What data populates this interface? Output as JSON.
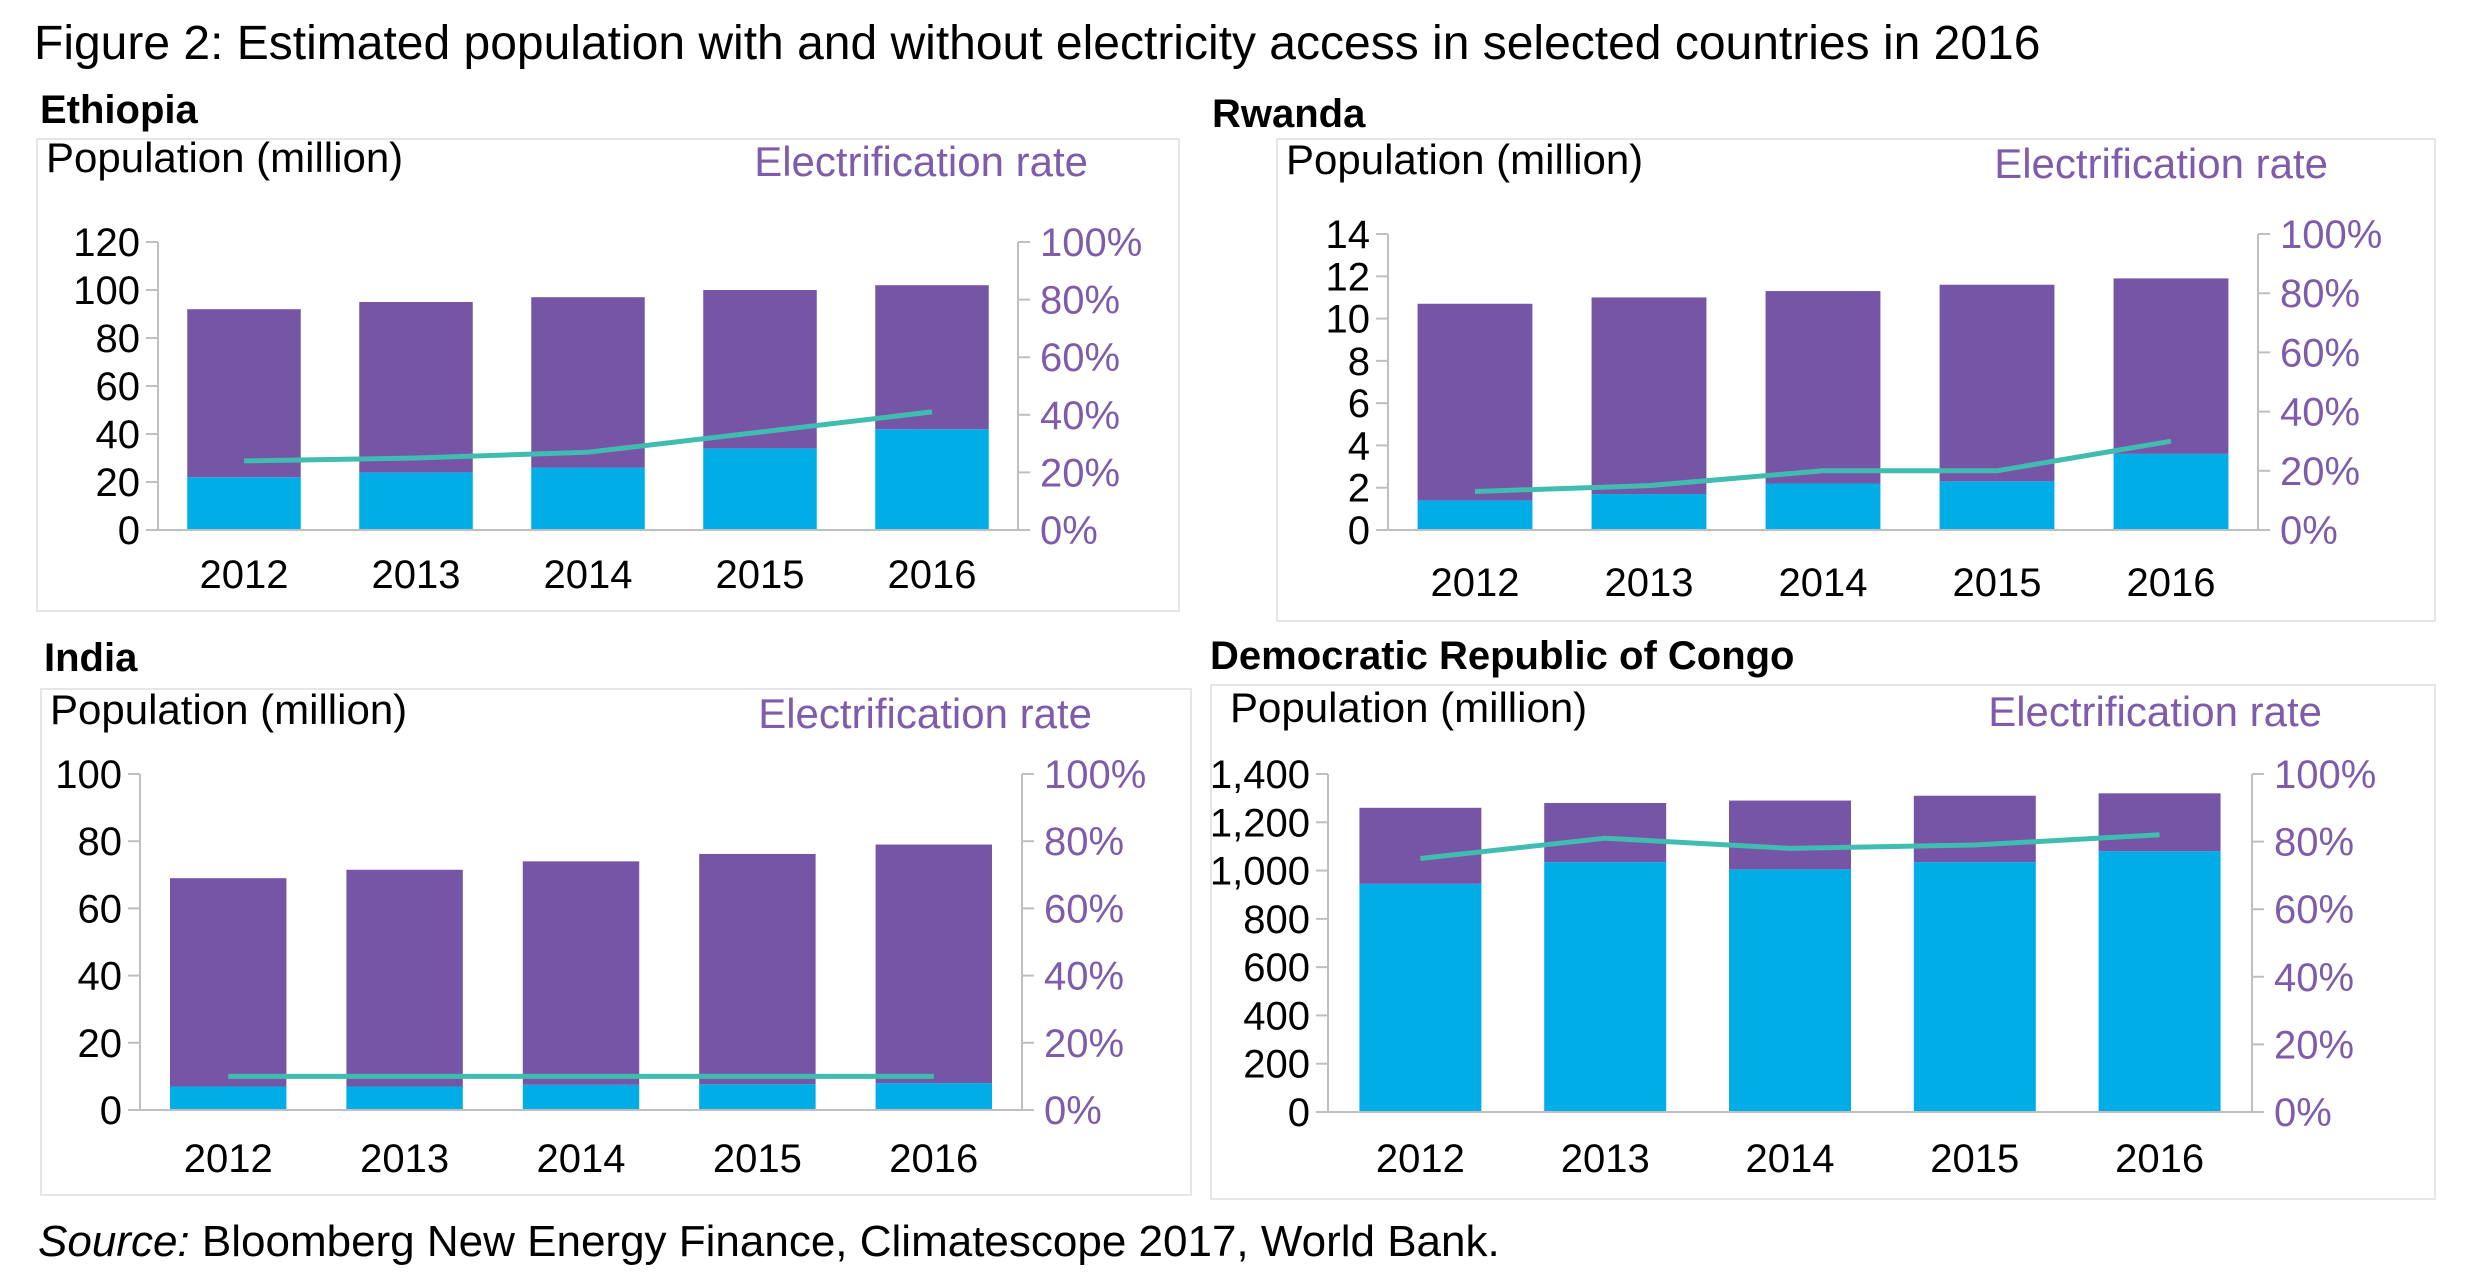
{
  "figure_title": "Figure 2: Estimated population with and without electricity access in selected countries in 2016",
  "source": {
    "label": "Source:",
    "text": "Bloomberg New Energy Finance, Climatescope 2017, World Bank."
  },
  "colors": {
    "with_access": "#00ADE6",
    "without_access": "#7655A6",
    "electrification_rate": "#40BDB0",
    "secondary_axis_text": "#7E5CAB",
    "gridline_axis": "#BFBFBF"
  },
  "chart_data": [
    {
      "type": "bar",
      "stacked": true,
      "title": "Ethiopia",
      "ylabel": "Population (million)",
      "y2label": "Electrification rate",
      "categories": [
        "2012",
        "2013",
        "2014",
        "2015",
        "2016"
      ],
      "ylim": [
        0,
        120
      ],
      "yticks": [
        "0",
        "20",
        "40",
        "60",
        "80",
        "100",
        "120"
      ],
      "y2lim": [
        0,
        1
      ],
      "y2ticks": [
        "0%",
        "20%",
        "40%",
        "60%",
        "80%",
        "100%"
      ],
      "series": [
        {
          "values": [
            22,
            24,
            26,
            34,
            42
          ]
        },
        {
          "values": [
            70,
            71,
            71,
            66,
            60
          ]
        }
      ],
      "line": {
        "values": [
          0.24,
          0.25,
          0.27,
          0.34,
          0.41
        ]
      }
    },
    {
      "type": "bar",
      "stacked": true,
      "title": "Rwanda",
      "ylabel": "Population (million)",
      "y2label": "Electrification rate",
      "categories": [
        "2012",
        "2013",
        "2014",
        "2015",
        "2016"
      ],
      "ylim": [
        0,
        14
      ],
      "yticks": [
        "0",
        "2",
        "4",
        "6",
        "8",
        "10",
        "12",
        "14"
      ],
      "y2lim": [
        0,
        1
      ],
      "y2ticks": [
        "0%",
        "20%",
        "40%",
        "60%",
        "80%",
        "100%"
      ],
      "series": [
        {
          "values": [
            1.4,
            1.7,
            2.2,
            2.3,
            3.6
          ]
        },
        {
          "values": [
            9.3,
            9.3,
            9.1,
            9.3,
            8.3
          ]
        }
      ],
      "line": {
        "values": [
          0.13,
          0.15,
          0.2,
          0.2,
          0.3
        ]
      }
    },
    {
      "type": "bar",
      "stacked": true,
      "title": "India",
      "ylabel": "Population (million)",
      "y2label": "Electrification rate",
      "categories": [
        "2012",
        "2013",
        "2014",
        "2015",
        "2016"
      ],
      "ylim": [
        0,
        100
      ],
      "yticks": [
        "0",
        "20",
        "40",
        "60",
        "80",
        "100"
      ],
      "y2lim": [
        0,
        1
      ],
      "y2ticks": [
        "0%",
        "20%",
        "40%",
        "60%",
        "80%",
        "100%"
      ],
      "series": [
        {
          "values": [
            7,
            7,
            7.5,
            7.7,
            8
          ]
        },
        {
          "values": [
            62,
            64.5,
            66.5,
            68.5,
            71
          ]
        }
      ],
      "line": {
        "values": [
          0.1,
          0.1,
          0.1,
          0.1,
          0.1
        ]
      }
    },
    {
      "type": "bar",
      "stacked": true,
      "title": "Democratic Republic of Congo",
      "ylabel": "Population (million)",
      "y2label": "Electrification rate",
      "categories": [
        "2012",
        "2013",
        "2014",
        "2015",
        "2016"
      ],
      "ylim": [
        0,
        1400
      ],
      "yticks": [
        "0",
        "200",
        "400",
        "600",
        "800",
        "1,000",
        "1,200",
        "1,400"
      ],
      "y2lim": [
        0,
        1
      ],
      "y2ticks": [
        "0%",
        "20%",
        "40%",
        "60%",
        "80%",
        "100%"
      ],
      "series": [
        {
          "values": [
            945,
            1035,
            1005,
            1035,
            1080
          ]
        },
        {
          "values": [
            315,
            245,
            285,
            275,
            240
          ]
        }
      ],
      "line": {
        "values": [
          0.75,
          0.81,
          0.78,
          0.79,
          0.82
        ]
      }
    }
  ]
}
